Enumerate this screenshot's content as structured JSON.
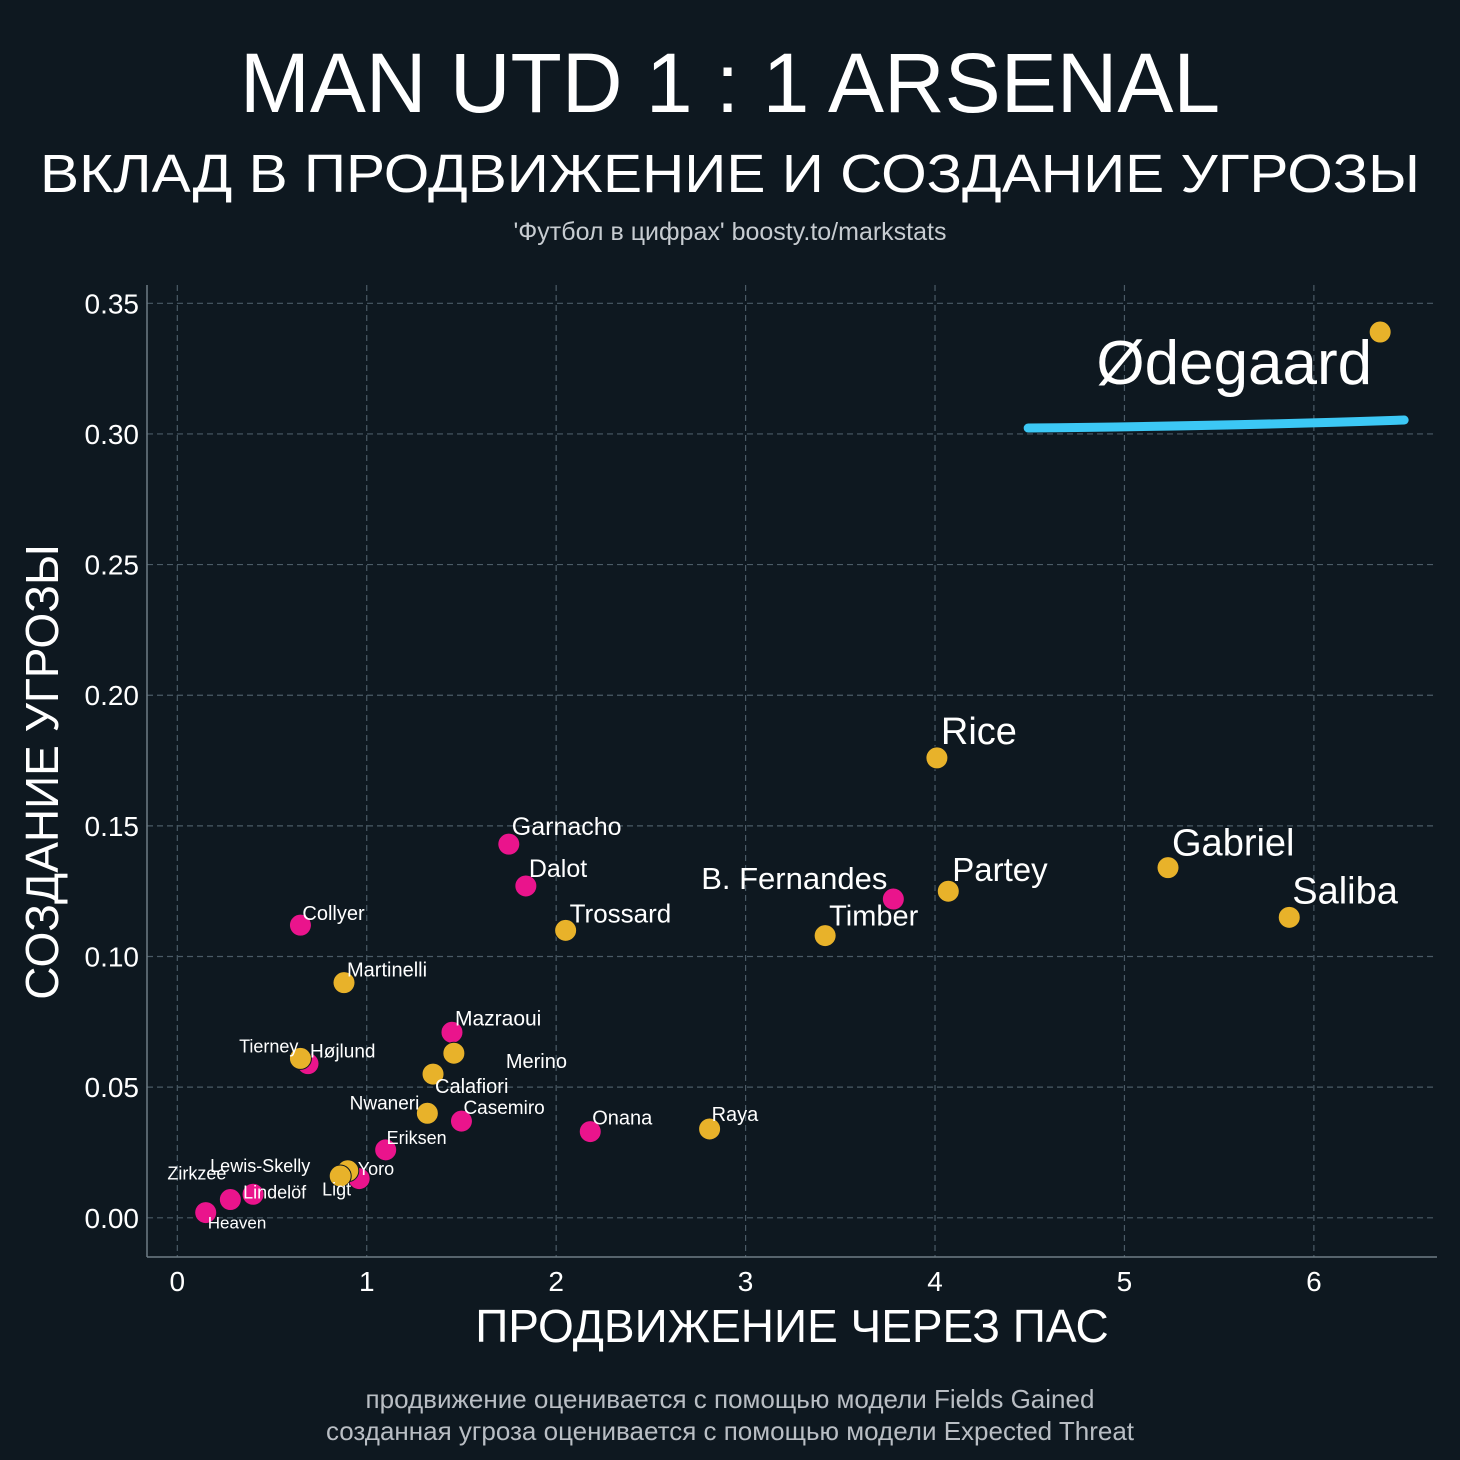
{
  "header": {
    "title": "MAN UTD 1 : 1 ARSENAL",
    "subtitle": "ВКЛАД В ПРОДВИЖЕНИЕ И СОЗДАНИЕ УГРОЗЫ",
    "credit": "'Футбол в цифрах' boosty.to/markstats"
  },
  "footer": {
    "line1": "продвижение оценивается с помощью модели Fields Gained",
    "line2": "созданная угроза оценивается с помощью модели Expected Threat"
  },
  "colors": {
    "background": "#0e1820",
    "man_utd": "#ea148c",
    "arsenal": "#e8b22a",
    "highlight": "#3cc8f5",
    "grid": "#4a5a66",
    "text": "#ffffff"
  },
  "chart_data": {
    "type": "scatter",
    "xlabel": "ПРОДВИЖЕНИЕ ЧЕРЕЗ ПАС",
    "ylabel": "СОЗДАНИЕ УГРОЗЫ",
    "xlim": [
      -0.16,
      6.65
    ],
    "ylim": [
      -0.015,
      0.357
    ],
    "xticks": [
      0,
      1,
      2,
      3,
      4,
      5,
      6
    ],
    "xtick_labels": [
      "0",
      "1",
      "2",
      "3",
      "4",
      "5",
      "6"
    ],
    "yticks": [
      0.0,
      0.05,
      0.1,
      0.15,
      0.2,
      0.25,
      0.3,
      0.35
    ],
    "ytick_labels": [
      "0.00",
      "0.05",
      "0.10",
      "0.15",
      "0.20",
      "0.25",
      "0.30",
      "0.35"
    ],
    "grid": true,
    "series": [
      {
        "team": "man_utd",
        "points": [
          {
            "label": "Garnacho",
            "x": 1.75,
            "y": 0.143
          },
          {
            "label": "Dalot",
            "x": 1.84,
            "y": 0.127
          },
          {
            "label": "B. Fernandes",
            "x": 3.78,
            "y": 0.122
          },
          {
            "label": "Collyer",
            "x": 0.65,
            "y": 0.112
          },
          {
            "label": "Mazraoui",
            "x": 1.45,
            "y": 0.071
          },
          {
            "label": "Højlund",
            "x": 0.69,
            "y": 0.059
          },
          {
            "label": "Casemiro",
            "x": 1.5,
            "y": 0.037
          },
          {
            "label": "Onana",
            "x": 2.18,
            "y": 0.033
          },
          {
            "label": "Eriksen",
            "x": 1.1,
            "y": 0.026
          },
          {
            "label": "Ligt",
            "x": 0.96,
            "y": 0.015
          },
          {
            "label": "Lindelöf",
            "x": 0.4,
            "y": 0.009
          },
          {
            "label": "Zirkzee",
            "x": 0.28,
            "y": 0.007
          },
          {
            "label": "Heaven",
            "x": 0.15,
            "y": 0.002
          }
        ]
      },
      {
        "team": "arsenal",
        "points": [
          {
            "label": "Ødegaard",
            "x": 6.35,
            "y": 0.339
          },
          {
            "label": "Rice",
            "x": 4.01,
            "y": 0.176
          },
          {
            "label": "Gabriel",
            "x": 5.23,
            "y": 0.134
          },
          {
            "label": "Partey",
            "x": 4.07,
            "y": 0.125
          },
          {
            "label": "Saliba",
            "x": 5.87,
            "y": 0.115
          },
          {
            "label": "Trossard",
            "x": 2.05,
            "y": 0.11
          },
          {
            "label": "Timber",
            "x": 3.42,
            "y": 0.108
          },
          {
            "label": "Martinelli",
            "x": 0.88,
            "y": 0.09
          },
          {
            "label": "Merino",
            "x": 1.46,
            "y": 0.063
          },
          {
            "label": "Tierney",
            "x": 0.65,
            "y": 0.061
          },
          {
            "label": "Calafiori",
            "x": 1.35,
            "y": 0.055
          },
          {
            "label": "Nwaneri",
            "x": 1.32,
            "y": 0.04
          },
          {
            "label": "Raya",
            "x": 2.81,
            "y": 0.034
          },
          {
            "label": "Yoro",
            "x": 0.9,
            "y": 0.018
          },
          {
            "label": "Lewis-Skelly",
            "x": 0.86,
            "y": 0.016
          }
        ]
      }
    ],
    "annotation": {
      "type": "underline",
      "target": "Ødegaard"
    }
  }
}
